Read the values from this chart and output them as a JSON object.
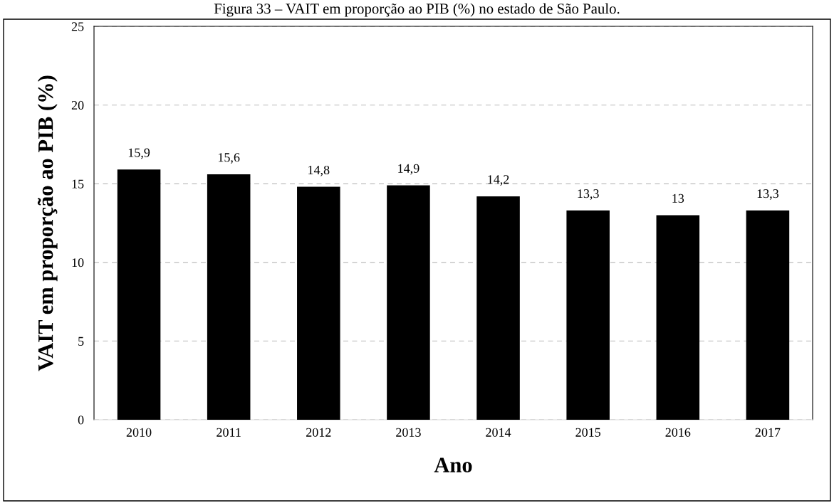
{
  "chart_data": {
    "type": "bar",
    "title": "Figura 33 – VAIT em proporção ao PIB (%) no estado de São Paulo.",
    "xlabel": "Ano",
    "ylabel": "VAIT em proporção ao PIB (%)",
    "categories": [
      "2010",
      "2011",
      "2012",
      "2013",
      "2014",
      "2015",
      "2016",
      "2017"
    ],
    "values": [
      15.9,
      15.6,
      14.8,
      14.9,
      14.2,
      13.3,
      13,
      13.3
    ],
    "value_labels": [
      "15,9",
      "15,6",
      "14,8",
      "14,9",
      "14,2",
      "13,3",
      "13",
      "13,3"
    ],
    "color": "#000000",
    "ylim": [
      0,
      25
    ],
    "yticks": [
      0,
      5,
      10,
      15,
      20,
      25
    ],
    "grid": "y",
    "legend": false
  }
}
